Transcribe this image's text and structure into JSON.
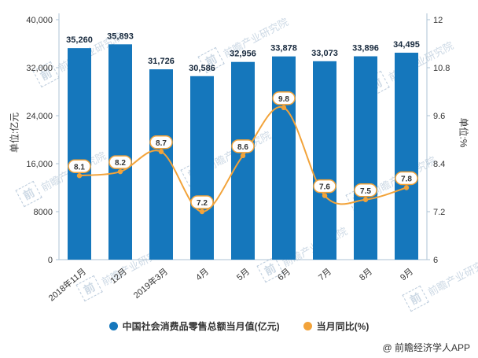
{
  "chart_data": {
    "type": "bar+line",
    "title": "",
    "categories": [
      "2018年11月",
      "12月",
      "2019年3月",
      "4月",
      "5月",
      "6月",
      "7月",
      "8月",
      "9月"
    ],
    "series": [
      {
        "name": "中国社会消费品零售总额当月值(亿元)",
        "type": "bar",
        "axis": "left",
        "color": "#1577bc",
        "values": [
          35260,
          35893,
          31726,
          30586,
          32956,
          33878,
          33073,
          33896,
          34495
        ],
        "labels": [
          "35,260",
          "35,893",
          "31,726",
          "30,586",
          "32,956",
          "33,878",
          "33,073",
          "33,896",
          "34,495"
        ]
      },
      {
        "name": "当月同比(%)",
        "type": "line",
        "axis": "right",
        "color": "#f2a33a",
        "values": [
          8.1,
          8.2,
          8.7,
          7.2,
          8.6,
          9.8,
          7.6,
          7.5,
          7.8
        ],
        "labels": [
          "8.1",
          "8.2",
          "8.7",
          "7.2",
          "8.6",
          "9.8",
          "7.6",
          "7.5",
          "7.8"
        ]
      }
    ],
    "left_axis": {
      "label": "单位:亿元",
      "min": 0,
      "max": 40000,
      "tick_values": [
        0,
        8000,
        16000,
        24000,
        32000,
        40000
      ],
      "tick_labels": [
        "0",
        "8000",
        "16,000",
        "24,000",
        "32,000",
        "40,000"
      ]
    },
    "right_axis": {
      "label": "单位:%",
      "min": 6,
      "max": 12,
      "tick_values": [
        6,
        7.2,
        8.4,
        9.6,
        10.8,
        12
      ],
      "tick_labels": [
        "6",
        "7.2",
        "8.4",
        "9.6",
        "10.8",
        "12"
      ]
    },
    "legend_position": "bottom",
    "grid": false
  },
  "watermark": {
    "logo": "前",
    "text": "前瞻产业研究院"
  },
  "credit": "@ 前瞻经济学人APP"
}
